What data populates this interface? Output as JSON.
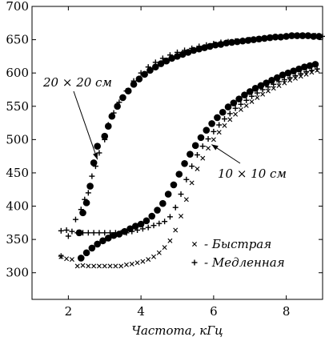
{
  "chart_data": {
    "type": "scatter",
    "title": "",
    "xlabel": "Частота, кГц",
    "ylabel": "",
    "xlim": [
      1,
      9
    ],
    "ylim": [
      260,
      700
    ],
    "xticks": [
      2,
      4,
      6,
      8
    ],
    "yticks": [
      300,
      350,
      400,
      450,
      500,
      550,
      600,
      650,
      700
    ],
    "grid": false,
    "legend": {
      "placement": "bottom-right",
      "entries": [
        {
          "marker": "x",
          "label": "- Быстрая"
        },
        {
          "marker": "+",
          "label": "- Медленная"
        }
      ]
    },
    "annotations": [
      {
        "text": "20 × 20 см",
        "points_to": [
          2.8,
          475
        ]
      },
      {
        "text": "10 × 10 см",
        "points_to": [
          5.9,
          495
        ]
      }
    ],
    "series": [
      {
        "group": "20 × 20 см",
        "marker": "circle",
        "x": [
          2.3,
          2.4,
          2.5,
          2.6,
          2.7,
          2.8,
          3.0,
          3.1,
          3.2,
          3.35,
          3.5,
          3.65,
          3.8,
          3.95,
          4.1,
          4.25,
          4.4,
          4.55,
          4.7,
          4.85,
          5.0,
          5.15,
          5.3,
          5.45,
          5.6,
          5.75,
          5.9,
          6.05,
          6.2,
          6.35,
          6.5,
          6.65,
          6.8,
          6.95,
          7.1,
          7.25,
          7.4,
          7.55,
          7.7,
          7.85,
          8.0,
          8.15,
          8.3,
          8.45,
          8.6,
          8.75,
          8.9
        ],
        "y": [
          360,
          390,
          405,
          430,
          465,
          490,
          505,
          520,
          535,
          550,
          563,
          573,
          583,
          591,
          598,
          604,
          609,
          614,
          618,
          622,
          625,
          628,
          631,
          634,
          636,
          638,
          640,
          642,
          643,
          645,
          646,
          647,
          648,
          649,
          650,
          651,
          652,
          653,
          654,
          654,
          655,
          656,
          656,
          656,
          656,
          655,
          655
        ]
      },
      {
        "group": "20 × 20 см",
        "marker": "+",
        "x": [
          1.8,
          2.0,
          2.2,
          2.35,
          2.45,
          2.55,
          2.65,
          2.75,
          2.85,
          3.0,
          3.1,
          3.25,
          3.4,
          3.6,
          3.8,
          4.0,
          4.2,
          4.4,
          4.6,
          4.8,
          5.0,
          5.2,
          5.4,
          5.6,
          5.8,
          6.0,
          6.2,
          6.4,
          6.6,
          6.8,
          7.0,
          7.2,
          7.4,
          7.6,
          7.8,
          8.0,
          8.2,
          8.4,
          8.6,
          8.8,
          9.0
        ],
        "y": [
          325,
          355,
          380,
          395,
          410,
          420,
          445,
          460,
          480,
          500,
          522,
          540,
          556,
          573,
          588,
          600,
          609,
          616,
          622,
          627,
          631,
          634,
          637,
          640,
          642,
          644,
          646,
          647,
          648,
          649,
          650,
          651,
          652,
          653,
          654,
          655,
          656,
          656,
          656,
          656,
          655
        ]
      },
      {
        "group": "10 × 10 см",
        "marker": "circle",
        "x": [
          2.35,
          2.5,
          2.65,
          2.8,
          2.95,
          3.1,
          3.25,
          3.4,
          3.55,
          3.7,
          3.85,
          4.0,
          4.15,
          4.3,
          4.45,
          4.6,
          4.75,
          4.9,
          5.05,
          5.2,
          5.35,
          5.5,
          5.65,
          5.8,
          5.95,
          6.1,
          6.25,
          6.4,
          6.55,
          6.7,
          6.85,
          7.0,
          7.15,
          7.3,
          7.45,
          7.6,
          7.75,
          7.9,
          8.05,
          8.2,
          8.35,
          8.5,
          8.65,
          8.8
        ],
        "y": [
          322,
          330,
          337,
          343,
          348,
          352,
          356,
          358,
          362,
          366,
          370,
          373,
          378,
          385,
          394,
          404,
          418,
          432,
          448,
          464,
          478,
          491,
          503,
          514,
          524,
          533,
          541,
          549,
          555,
          561,
          567,
          572,
          577,
          581,
          585,
          589,
          593,
          597,
          600,
          603,
          606,
          609,
          611,
          613
        ]
      },
      {
        "group": "10 × 10 см",
        "marker": "+",
        "x": [
          1.8,
          1.95,
          2.1,
          2.25,
          2.4,
          2.55,
          2.7,
          2.85,
          3.0,
          3.15,
          3.3,
          3.45,
          3.6,
          3.75,
          3.9,
          4.05,
          4.2,
          4.35,
          4.5,
          4.65,
          4.8,
          4.95,
          5.1,
          5.25,
          5.4,
          5.55,
          5.7,
          5.85,
          6.0,
          6.15,
          6.3,
          6.45,
          6.6,
          6.75,
          6.9,
          7.05,
          7.2,
          7.35,
          7.5,
          7.65,
          7.8,
          7.95,
          8.1,
          8.25,
          8.4,
          8.55,
          8.7,
          8.85
        ],
        "y": [
          363,
          364,
          362,
          360,
          360,
          360,
          360,
          360,
          360,
          360,
          360,
          360,
          360,
          362,
          364,
          366,
          368,
          371,
          374,
          377,
          384,
          398,
          418,
          440,
          460,
          477,
          490,
          501,
          512,
          522,
          531,
          539,
          547,
          553,
          559,
          565,
          570,
          575,
          579,
          583,
          587,
          590,
          593,
          596,
          599,
          602,
          604,
          606
        ]
      },
      {
        "group": "10 × 10 см",
        "marker": "x",
        "x": [
          1.8,
          1.95,
          2.1,
          2.25,
          2.4,
          2.55,
          2.7,
          2.85,
          3.0,
          3.15,
          3.3,
          3.45,
          3.6,
          3.75,
          3.9,
          4.05,
          4.2,
          4.35,
          4.5,
          4.65,
          4.8,
          4.95,
          5.1,
          5.25,
          5.4,
          5.55,
          5.7,
          5.85,
          6.0,
          6.15,
          6.3,
          6.45,
          6.6,
          6.75,
          6.9,
          7.05,
          7.2,
          7.35,
          7.5,
          7.65,
          7.8,
          7.95,
          8.1,
          8.25,
          8.4,
          8.55,
          8.7,
          8.85
        ],
        "y": [
          324,
          321,
          320,
          310,
          311,
          310,
          310,
          310,
          310,
          310,
          310,
          310,
          312,
          313,
          315,
          317,
          320,
          324,
          330,
          338,
          348,
          364,
          385,
          410,
          435,
          456,
          472,
          487,
          500,
          511,
          521,
          530,
          538,
          545,
          551,
          557,
          563,
          568,
          573,
          577,
          581,
          585,
          589,
          592,
          595,
          598,
          601,
          604
        ]
      }
    ]
  }
}
